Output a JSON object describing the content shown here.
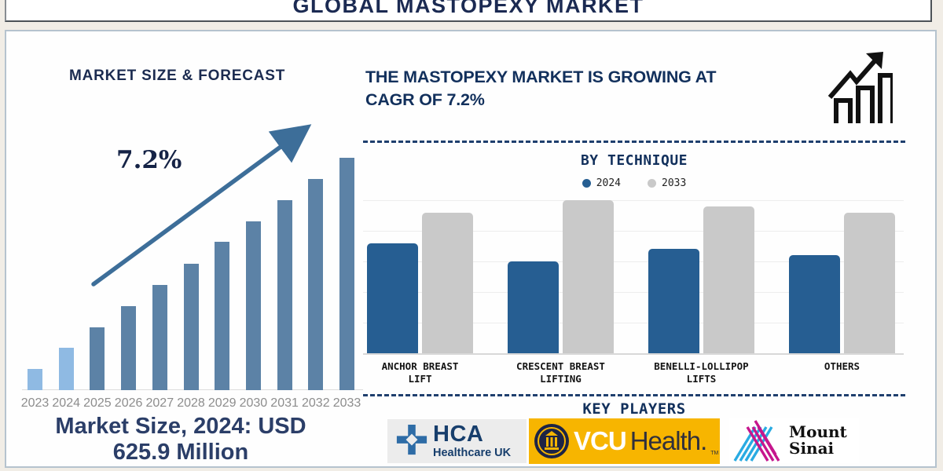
{
  "page": {
    "title": "GLOBAL MASTOPEXY MARKET"
  },
  "left_panel": {
    "heading": "MARKET SIZE & FORECAST",
    "cagr_label": "7.2%",
    "caption_line1": "Market Size, 2024: USD",
    "caption_line2": "625.9 Million"
  },
  "right_panel": {
    "headline_line1": "THE MASTOPEXY MARKET IS GROWING AT",
    "headline_line2": "CAGR OF 7.2%",
    "section_title": "BY TECHNIQUE",
    "key_players_title": "KEY PLAYERS"
  },
  "legend": {
    "items": [
      {
        "label": "2024",
        "color": "#265e92"
      },
      {
        "label": "2033",
        "color": "#c9c9c9"
      }
    ]
  },
  "chart_data": [
    {
      "type": "bar",
      "title": "MARKET SIZE & FORECAST",
      "categories": [
        "2023",
        "2024",
        "2025",
        "2026",
        "2027",
        "2028",
        "2029",
        "2030",
        "2031",
        "2032",
        "2033"
      ],
      "values": [
        27,
        54,
        80,
        107,
        134,
        161,
        189,
        215,
        242,
        269,
        296
      ],
      "units": "relative height in px (no value axis shown)",
      "annotation": "7.2%",
      "note_value_2024": "USD 625.9 Million",
      "bar_color_default": "#5c82a6",
      "bar_color_highlight_first_two": "#8fbae3",
      "grid": false,
      "xlabel": "",
      "ylabel": ""
    },
    {
      "type": "bar",
      "title": "BY TECHNIQUE",
      "categories": [
        "ANCHOR BREAST LIFT",
        "CRESCENT BREAST LIFTING",
        "BENELLI-LOLLIPOP LIFTS",
        "OTHERS"
      ],
      "label_lines": [
        [
          "ANCHOR BREAST",
          "LIFT"
        ],
        [
          "CRESCENT BREAST",
          "LIFTING"
        ],
        [
          "BENELLI-LOLLIPOP",
          "LIFTS"
        ],
        [
          "OTHERS"
        ]
      ],
      "series": [
        {
          "name": "2024",
          "color": "#265e92",
          "values": [
            3.6,
            3.0,
            3.4,
            3.2
          ]
        },
        {
          "name": "2033",
          "color": "#c9c9c9",
          "values": [
            4.6,
            5.0,
            4.8,
            4.6
          ]
        }
      ],
      "units": "gridline units (no value axis labels shown)",
      "grid": true,
      "legend_position": "top",
      "xlabel": "",
      "ylabel": ""
    }
  ],
  "key_players": [
    {
      "name": "HCA Healthcare UK",
      "text_primary": "HCA",
      "text_secondary": "Healthcare UK",
      "bg": "#ececec",
      "text_color": "#173e6c",
      "icon": "hca-cross-icon",
      "icon_color": "#2e6ca6"
    },
    {
      "name": "VCU Health",
      "text_primary": "VCU",
      "text_secondary": "Health.",
      "trademark": "TM",
      "bg": "#f7b500",
      "primary_color": "#ffffff",
      "secondary_color": "#30303c",
      "icon": "vcu-seal-icon"
    },
    {
      "name": "Mount Sinai",
      "text_line1": "Mount",
      "text_line2": "Sinai",
      "bg": "#ffffff",
      "text_color": "#111111",
      "icon": "mount-sinai-stripes-icon",
      "stripe_colors": [
        "#29abe2",
        "#c6168d"
      ]
    }
  ],
  "colors": {
    "page_background": "#f1ede6",
    "panel_background": "#fefefe",
    "navy_text": "#1b2a52",
    "headline_navy": "#12305c",
    "forecast_bar": "#5c82a6",
    "forecast_bar_light": "#8fbae3",
    "technique_blue": "#265e92",
    "technique_gray": "#c9c9c9",
    "year_label_gray": "#8d8d8d",
    "dashed_divider": "#1f3f6e",
    "arrow_steel": "#3d6e99"
  }
}
